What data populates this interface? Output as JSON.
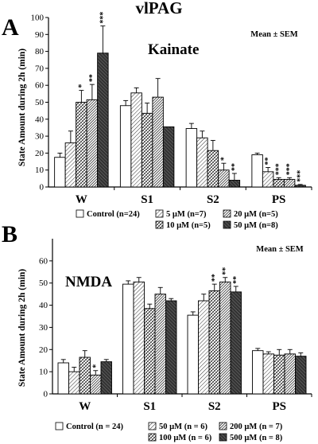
{
  "figure_title": "vlPAG",
  "chart_data": [
    {
      "type": "bar",
      "panel_label": "A",
      "title": "Kainate",
      "annotation": "Mean ± SEM",
      "ylabel": "State Amount during 2h (min)",
      "ylim": [
        0,
        100
      ],
      "yticks": [
        0,
        10,
        20,
        30,
        40,
        50,
        60,
        70,
        80,
        90,
        100
      ],
      "categories": [
        "W",
        "S1",
        "S2",
        "PS"
      ],
      "series": [
        {
          "name": "Control (n=24)",
          "pattern": "white",
          "values": [
            17.5,
            48,
            34.5,
            19
          ],
          "errors": [
            2.5,
            3,
            3,
            1
          ],
          "stars": [
            "",
            "",
            "",
            ""
          ]
        },
        {
          "name": "5 µM (n=7)",
          "pattern": "diag-light",
          "values": [
            26,
            55.5,
            29,
            9
          ],
          "errors": [
            7,
            3,
            4,
            2.5
          ],
          "stars": [
            "",
            "",
            "",
            "**"
          ]
        },
        {
          "name": "10 µM (n=5)",
          "pattern": "cross-light",
          "values": [
            50,
            43.5,
            21.5,
            4.5
          ],
          "errors": [
            7,
            6,
            6,
            1
          ],
          "stars": [
            "*",
            "",
            "",
            "***"
          ]
        },
        {
          "name": "20 µM (n=5)",
          "pattern": "diag-dense",
          "values": [
            51.5,
            53,
            10,
            4.5
          ],
          "errors": [
            9,
            11,
            4,
            1
          ],
          "stars": [
            "**",
            "",
            "*",
            "***"
          ]
        },
        {
          "name": "50 µM (n=8)",
          "pattern": "dark",
          "values": [
            79,
            35.5,
            4,
            1
          ],
          "errors": [
            16,
            0,
            4,
            0.5
          ],
          "stars": [
            "***",
            "",
            "**",
            "***"
          ]
        }
      ],
      "legend": {
        "placement": "bottom",
        "rows": [
          [
            "Control  (n=24)",
            "5 µM  (n=7)",
            "20 µM  (n=5)"
          ],
          [
            "",
            "10 µM  (n=5)",
            "50 µM  (n=8)"
          ]
        ]
      }
    },
    {
      "type": "bar",
      "panel_label": "B",
      "title": "NMDA",
      "annotation": "Mean ± SEM",
      "ylabel": "State Amount during 2h (min)",
      "ylim": [
        0,
        70
      ],
      "yticks": [
        0,
        10,
        20,
        30,
        40,
        50,
        60
      ],
      "categories": [
        "W",
        "S1",
        "S2",
        "PS"
      ],
      "series": [
        {
          "name": "Control (n = 24)",
          "pattern": "white",
          "values": [
            14,
            49.5,
            35.5,
            19.5
          ],
          "errors": [
            1.5,
            1.5,
            1.5,
            1
          ],
          "stars": [
            "",
            "",
            "",
            ""
          ]
        },
        {
          "name": "50 µM (n = 6)",
          "pattern": "diag-light",
          "values": [
            10,
            50.5,
            42,
            18
          ],
          "errors": [
            2,
            2,
            3,
            1
          ],
          "stars": [
            "",
            "",
            "",
            ""
          ]
        },
        {
          "name": "100 µM (n = 6)",
          "pattern": "cross-light",
          "values": [
            16.5,
            38.5,
            46.5,
            17.5
          ],
          "errors": [
            3,
            2,
            3,
            2.5
          ],
          "stars": [
            "",
            "",
            "**",
            ""
          ]
        },
        {
          "name": "200 µM (n = 7)",
          "pattern": "diag-dense",
          "values": [
            8.5,
            45,
            50.5,
            18
          ],
          "errors": [
            2,
            3,
            2,
            2
          ],
          "stars": [
            "*",
            "",
            "**",
            ""
          ]
        },
        {
          "name": "500 µM (n = 8)",
          "pattern": "dark",
          "values": [
            14.5,
            42,
            46,
            17
          ],
          "errors": [
            1,
            1,
            2.5,
            1.5
          ],
          "stars": [
            "",
            "",
            "**",
            ""
          ]
        }
      ],
      "legend": {
        "placement": "bottom",
        "rows": [
          [
            "Control  (n = 24)",
            "50 µM  (n = 6)",
            "200 µM  (n = 7)"
          ],
          [
            "",
            "100 µM  (n = 6)",
            "500 µM  (n = 8)"
          ]
        ]
      }
    }
  ]
}
